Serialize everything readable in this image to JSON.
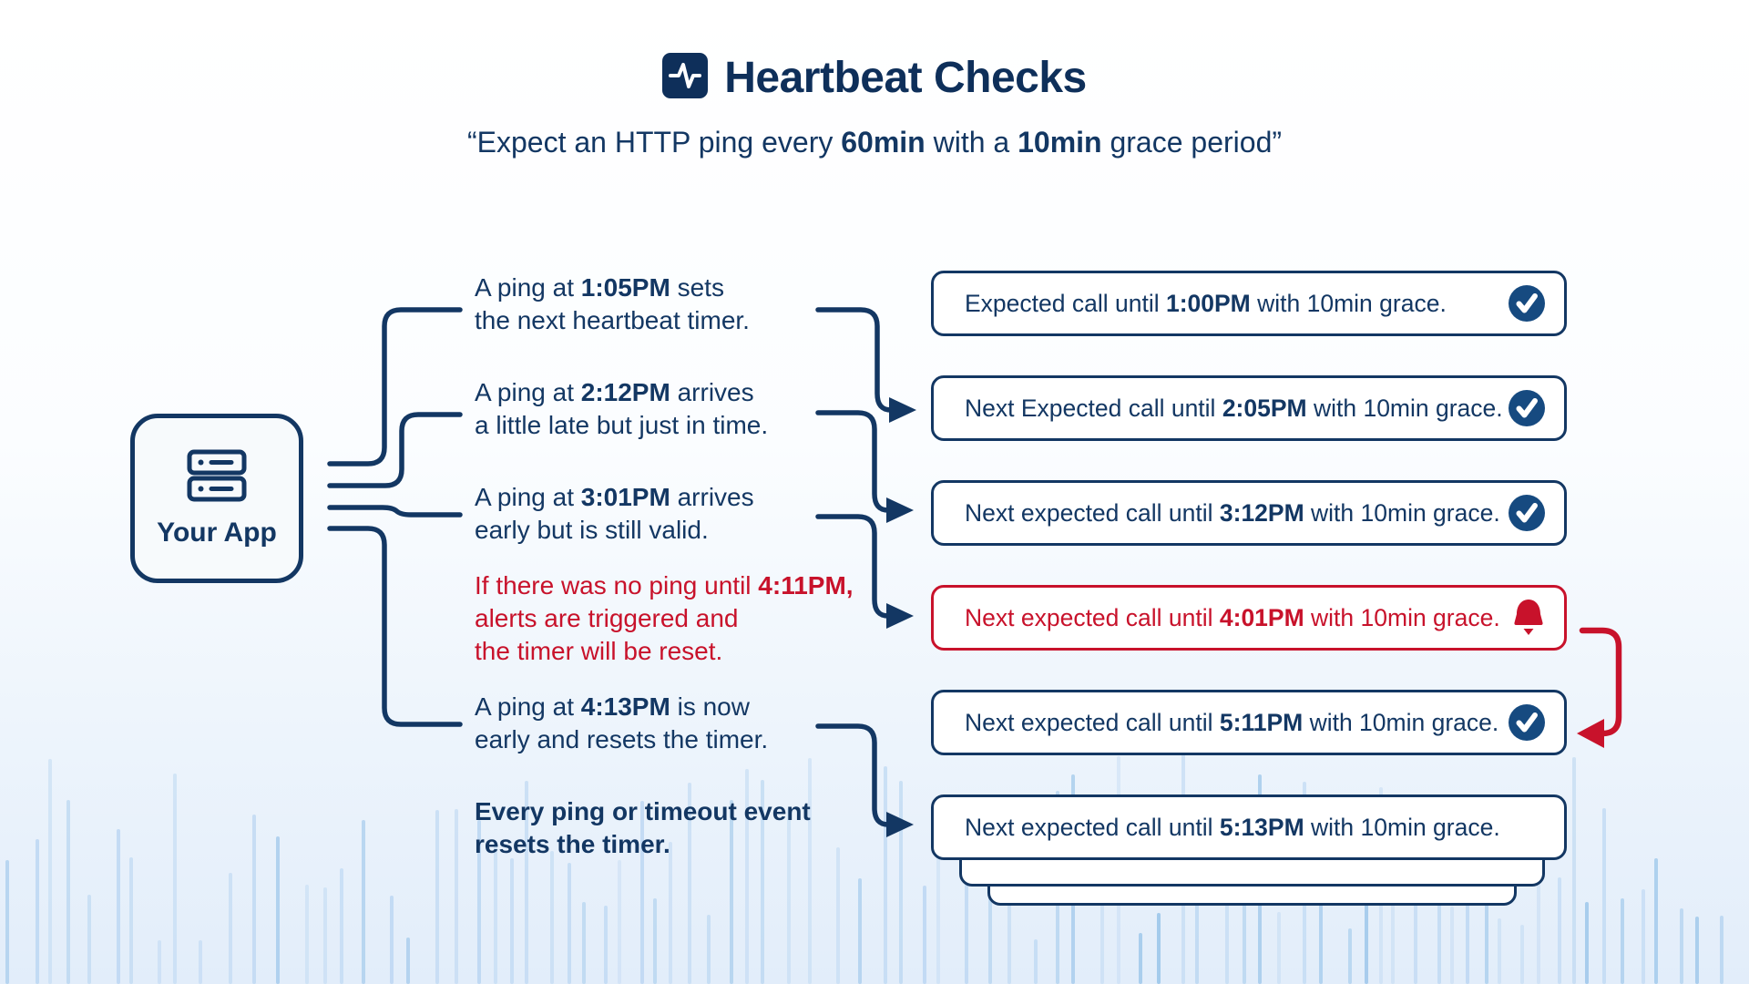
{
  "header": {
    "icon": "activity-pulse-icon",
    "title": "Heartbeat Checks",
    "subtitle_segments": [
      {
        "t": "“Expect an HTTP ping every ",
        "b": false
      },
      {
        "t": "60min",
        "b": true
      },
      {
        "t": " with a ",
        "b": false
      },
      {
        "t": "10min",
        "b": true
      },
      {
        "t": " grace period”",
        "b": false
      }
    ]
  },
  "app_node": {
    "icon": "server-icon",
    "label": "Your App"
  },
  "events": [
    {
      "id": "ping-1",
      "style": "navy",
      "segments": [
        {
          "t": "A ping at ",
          "b": false
        },
        {
          "t": "1:05PM",
          "b": true
        },
        {
          "t": " sets\nthe next heartbeat timer.",
          "b": false
        }
      ]
    },
    {
      "id": "ping-2",
      "style": "navy",
      "segments": [
        {
          "t": "A ping at ",
          "b": false
        },
        {
          "t": "2:12PM",
          "b": true
        },
        {
          "t": " arrives\na little late but just in time.",
          "b": false
        }
      ]
    },
    {
      "id": "ping-3",
      "style": "navy",
      "segments": [
        {
          "t": "A ping at ",
          "b": false
        },
        {
          "t": "3:01PM",
          "b": true
        },
        {
          "t": " arrives\nearly but is still valid.",
          "b": false
        }
      ]
    },
    {
      "id": "timeout-alert",
      "style": "red",
      "segments": [
        {
          "t": "If there was no ping until ",
          "b": false
        },
        {
          "t": "4:11PM,",
          "b": true
        },
        {
          "t": "\nalerts are triggered and\nthe timer will be reset.",
          "b": false
        }
      ]
    },
    {
      "id": "ping-4",
      "style": "navy",
      "segments": [
        {
          "t": "A ping at ",
          "b": false
        },
        {
          "t": "4:13PM",
          "b": true
        },
        {
          "t": " is now\nearly and resets the timer.",
          "b": false
        }
      ]
    },
    {
      "id": "summary-note",
      "style": "navy-bold",
      "segments": [
        {
          "t": "Every ping or timeout event\nresets the timer.",
          "b": true
        }
      ]
    }
  ],
  "timers": [
    {
      "style": "navy",
      "status": "confirmed",
      "icon": "check-circle-icon",
      "segments": [
        {
          "t": "Expected call until ",
          "b": false
        },
        {
          "t": "1:00PM",
          "b": true
        },
        {
          "t": " with 10min grace.",
          "b": false
        }
      ]
    },
    {
      "style": "navy",
      "status": "confirmed",
      "icon": "check-circle-icon",
      "segments": [
        {
          "t": "Next Expected call until ",
          "b": false
        },
        {
          "t": "2:05PM",
          "b": true
        },
        {
          "t": " with 10min grace.",
          "b": false
        }
      ]
    },
    {
      "style": "navy",
      "status": "confirmed",
      "icon": "check-circle-icon",
      "segments": [
        {
          "t": "Next expected call until ",
          "b": false
        },
        {
          "t": "3:12PM",
          "b": true
        },
        {
          "t": " with 10min grace.",
          "b": false
        }
      ]
    },
    {
      "style": "red",
      "status": "alert",
      "icon": "bell-alert-icon",
      "segments": [
        {
          "t": "Next expected call until ",
          "b": false
        },
        {
          "t": "4:01PM",
          "b": true
        },
        {
          "t": " with 10min grace.",
          "b": false
        }
      ]
    },
    {
      "style": "navy",
      "status": "confirmed",
      "icon": "check-circle-icon",
      "segments": [
        {
          "t": "Next expected call until ",
          "b": false
        },
        {
          "t": "5:11PM",
          "b": true
        },
        {
          "t": " with 10min grace.",
          "b": false
        }
      ]
    },
    {
      "style": "navy",
      "status": "none",
      "icon": "",
      "segments": [
        {
          "t": "Next expected call until ",
          "b": false
        },
        {
          "t": "5:13PM",
          "b": true
        },
        {
          "t": " with 10min grace.",
          "b": false
        }
      ]
    }
  ],
  "colors": {
    "navy": "#133763",
    "navy_dark": "#0e2f5a",
    "red": "#c8122b",
    "check_fill": "#164a80",
    "app_box_bg": "#f7fafc",
    "bar": "#bcd7f2",
    "bar_strong": "#9cc6ea",
    "bg_top": "#ffffff",
    "bg_bottom": "#e2edfa"
  }
}
